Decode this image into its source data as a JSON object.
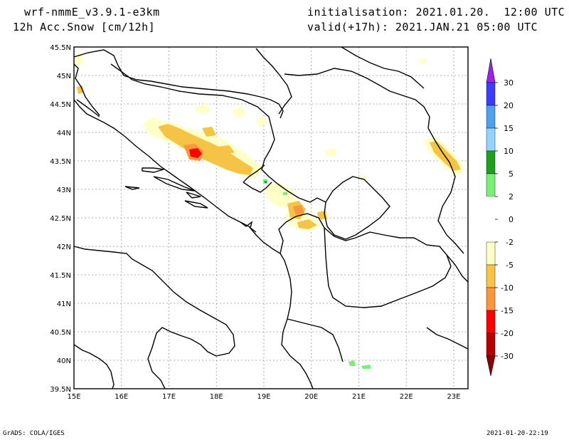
{
  "header": {
    "model": "wrf-nmmE_v3.9.1-e3km",
    "field": "12h Acc.Snow [cm/12h]",
    "init": "initialisation: 2021.01.20.  12:00 UTC",
    "valid": "valid(+17h): 2021.JAN.21 05:00 UTC"
  },
  "footer": {
    "credit": "GrADS: COLA/IGES",
    "timestamp": "2021-01-20-22:19"
  },
  "map": {
    "lon_range": [
      15,
      23.3
    ],
    "lat_range": [
      39.5,
      45.5
    ],
    "lon_ticks": [
      {
        "v": 15,
        "label": "15E"
      },
      {
        "v": 16,
        "label": "16E"
      },
      {
        "v": 17,
        "label": "17E"
      },
      {
        "v": 18,
        "label": "18E"
      },
      {
        "v": 19,
        "label": "19E"
      },
      {
        "v": 20,
        "label": "20E"
      },
      {
        "v": 21,
        "label": "21E"
      },
      {
        "v": 22,
        "label": "22E"
      },
      {
        "v": 23,
        "label": "23E"
      }
    ],
    "lat_ticks": [
      {
        "v": 39.5,
        "label": "39.5N"
      },
      {
        "v": 40,
        "label": "40N"
      },
      {
        "v": 40.5,
        "label": "40.5N"
      },
      {
        "v": 41,
        "label": "41N"
      },
      {
        "v": 41.5,
        "label": "41.5N"
      },
      {
        "v": 42,
        "label": "42N"
      },
      {
        "v": 42.5,
        "label": "42.5N"
      },
      {
        "v": 43,
        "label": "43N"
      },
      {
        "v": 43.5,
        "label": "43.5N"
      },
      {
        "v": 44,
        "label": "44N"
      },
      {
        "v": 44.5,
        "label": "44.5N"
      },
      {
        "v": 45,
        "label": "45N"
      },
      {
        "v": 45.5,
        "label": "45.5N"
      }
    ],
    "grid": true
  },
  "colorbar": {
    "labels": [
      "30",
      "20",
      "15",
      "10",
      "5",
      "2",
      "0",
      "-2",
      "-5",
      "-10",
      "-15",
      "-20",
      "-30"
    ],
    "top_arrow_color": "#a020f0",
    "bottom_arrow_color": "#8b0000",
    "boxes": [
      "#3c3cff",
      "#50a0f0",
      "#96d2fa",
      "#1ea01e",
      "#78f078",
      "#ffffff",
      "#ffffff",
      "#ffffc8",
      "#f5c346",
      "#fa963c",
      "#ff0000",
      "#b40000"
    ]
  },
  "legend_colors": {
    "light": "#ffffc8",
    "orange_light": "#f5c346",
    "orange": "#fa963c",
    "red": "#ff0000",
    "dark_red": "#b40000",
    "green": "#78f078",
    "dark_green": "#1ea01e"
  }
}
